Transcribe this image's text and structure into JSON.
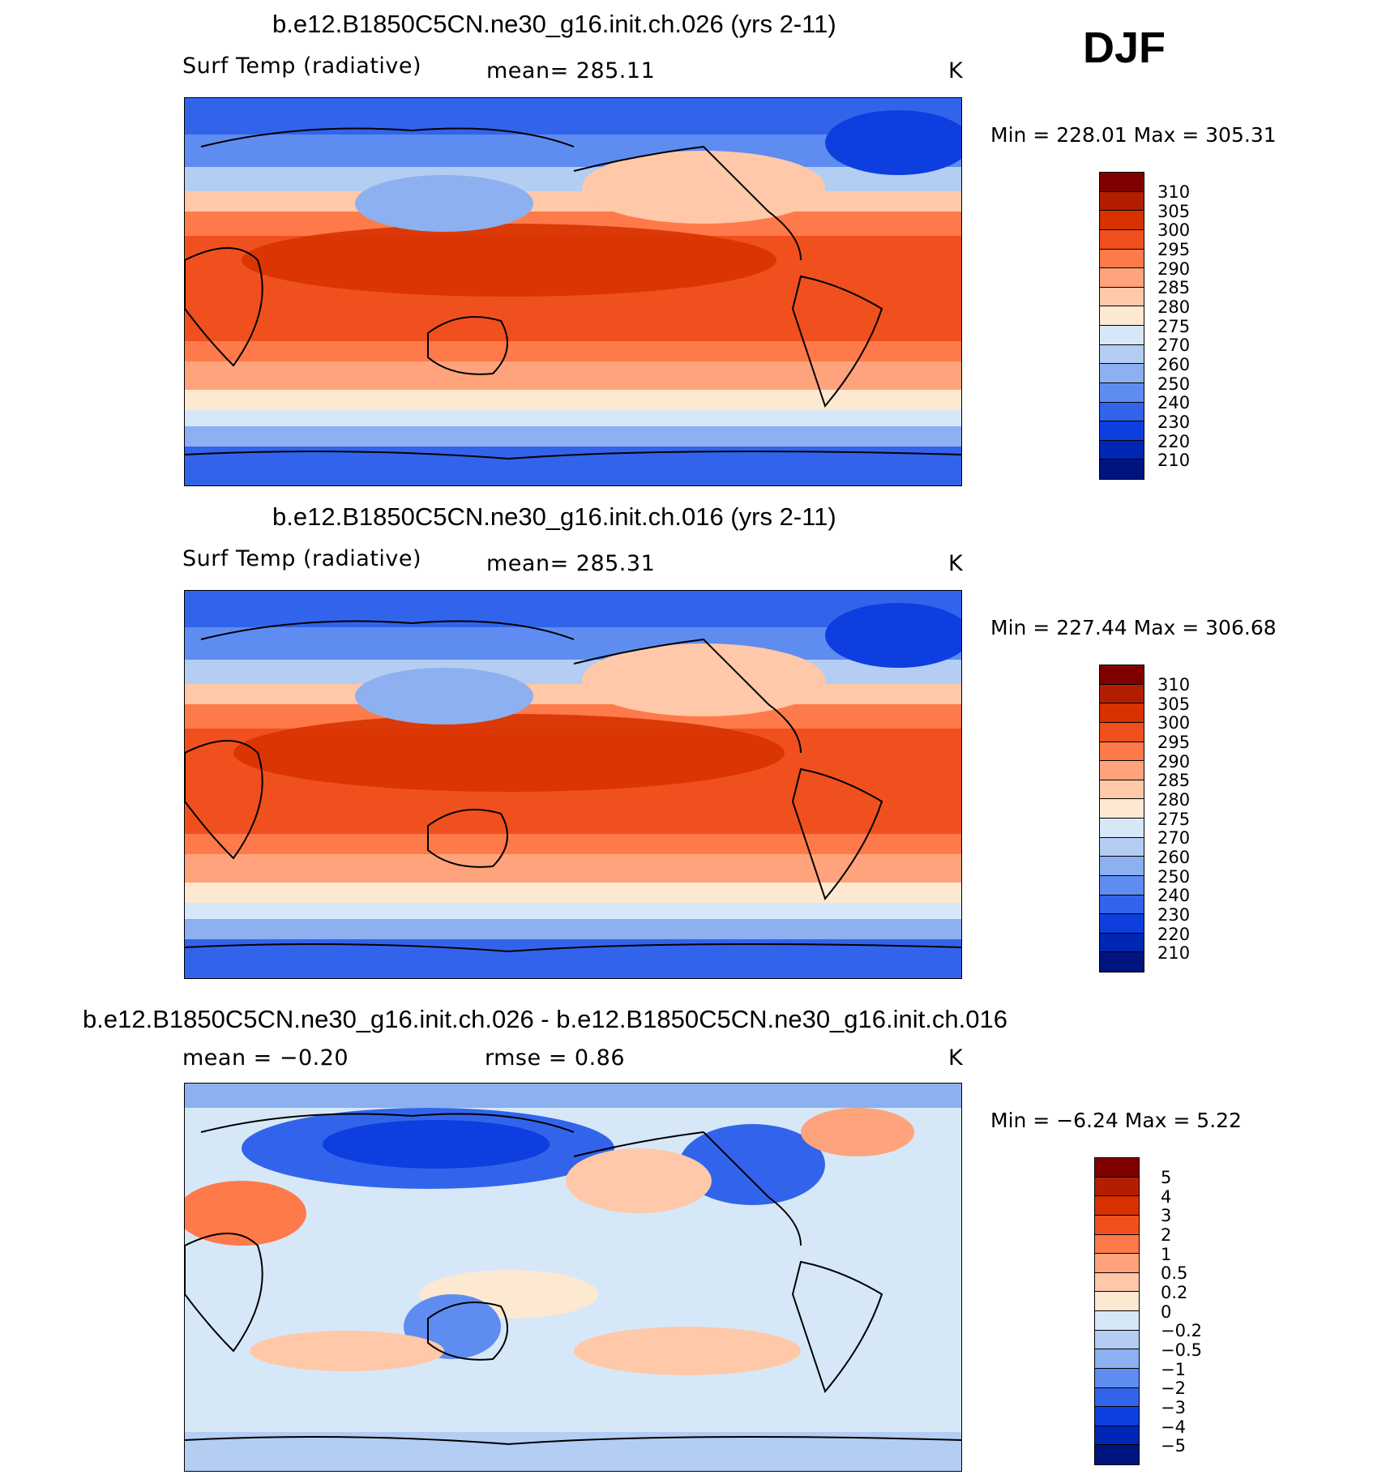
{
  "season": "DJF",
  "colors": {
    "abs_scale": [
      "#800000",
      "#b41e00",
      "#d73200",
      "#f0501e",
      "#ff7a4a",
      "#ffa37c",
      "#ffc8a8",
      "#fde8d2",
      "#d6e8f8",
      "#b4cdf2",
      "#8cb0f0",
      "#5f8cf0",
      "#3264eb",
      "#0d3ee0",
      "#0026b4",
      "#00147f"
    ],
    "diff_scale": [
      "#800000",
      "#b41e00",
      "#d73200",
      "#f0501e",
      "#ff7a4a",
      "#ffa37c",
      "#ffc8a8",
      "#fde8d2",
      "#d6e8f8",
      "#b4cdf2",
      "#8cb0f0",
      "#5f8cf0",
      "#3264eb",
      "#0d3ee0",
      "#0026b4",
      "#00147f"
    ]
  },
  "panels": [
    {
      "title": "b.e12.B1850C5CN.ne30_g16.init.ch.026 (yrs 2-11)",
      "variable": "Surf Temp (radiative)",
      "mean": "mean=  285.11",
      "units": "K",
      "minmax": "Min  =  228.01  Max  =  305.31",
      "ticks": [
        "310",
        "305",
        "300",
        "295",
        "290",
        "285",
        "280",
        "275",
        "270",
        "260",
        "250",
        "240",
        "230",
        "220",
        "210"
      ],
      "map_icon": "world-map-pacific-centered"
    },
    {
      "title": "b.e12.B1850C5CN.ne30_g16.init.ch.016 (yrs 2-11)",
      "variable": "Surf Temp (radiative)",
      "mean": "mean=  285.31",
      "units": "K",
      "minmax": "Min  =  227.44  Max  =  306.68",
      "ticks": [
        "310",
        "305",
        "300",
        "295",
        "290",
        "285",
        "280",
        "275",
        "270",
        "260",
        "250",
        "240",
        "230",
        "220",
        "210"
      ],
      "map_icon": "world-map-pacific-centered"
    },
    {
      "title": "b.e12.B1850C5CN.ne30_g16.init.ch.026 - b.e12.B1850C5CN.ne30_g16.init.ch.016",
      "mean": "mean =    −0.20",
      "rmse": "rmse =     0.86",
      "units": "K",
      "minmax": "Min  =     −6.24  Max  =     5.22",
      "ticks": [
        "5",
        "4",
        "3",
        "2",
        "1",
        "0.5",
        "0.2",
        "0",
        "−0.2",
        "−0.5",
        "−1",
        "−2",
        "−3",
        "−4",
        "−5"
      ],
      "map_icon": "world-map-pacific-centered"
    }
  ]
}
